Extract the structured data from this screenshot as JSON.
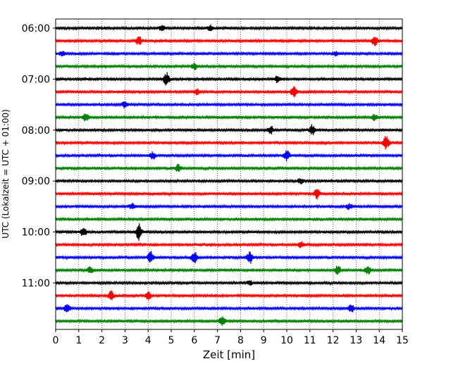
{
  "chart_data": {
    "type": "line",
    "title": "",
    "xlabel": "Zeit  [min]",
    "ylabel": "UTC (Lokalzeit = UTC + 01:00)",
    "xlim": [
      0,
      15
    ],
    "x_ticks": [
      "0",
      "1",
      "2",
      "3",
      "4",
      "5",
      "6",
      "7",
      "8",
      "9",
      "10",
      "11",
      "12",
      "13",
      "14",
      "15"
    ],
    "y_ticks": [
      "06:00",
      "07:00",
      "08:00",
      "09:00",
      "10:00",
      "11:00"
    ],
    "row_interval_minutes": 15,
    "grid": "vertical dotted",
    "series": [
      {
        "start": "06:00",
        "color": "#000000"
      },
      {
        "start": "06:15",
        "color": "#ff0000"
      },
      {
        "start": "06:30",
        "color": "#0000ff"
      },
      {
        "start": "06:45",
        "color": "#008000"
      },
      {
        "start": "07:00",
        "color": "#000000"
      },
      {
        "start": "07:15",
        "color": "#ff0000"
      },
      {
        "start": "07:30",
        "color": "#0000ff"
      },
      {
        "start": "07:45",
        "color": "#008000"
      },
      {
        "start": "08:00",
        "color": "#000000"
      },
      {
        "start": "08:15",
        "color": "#ff0000"
      },
      {
        "start": "08:30",
        "color": "#0000ff"
      },
      {
        "start": "08:45",
        "color": "#008000"
      },
      {
        "start": "09:00",
        "color": "#000000"
      },
      {
        "start": "09:15",
        "color": "#ff0000"
      },
      {
        "start": "09:30",
        "color": "#0000ff"
      },
      {
        "start": "09:45",
        "color": "#008000"
      },
      {
        "start": "10:00",
        "color": "#000000"
      },
      {
        "start": "10:15",
        "color": "#ff0000"
      },
      {
        "start": "10:30",
        "color": "#0000ff"
      },
      {
        "start": "10:45",
        "color": "#008000"
      },
      {
        "start": "11:00",
        "color": "#000000"
      },
      {
        "start": "11:15",
        "color": "#ff0000"
      },
      {
        "start": "11:30",
        "color": "#0000ff"
      },
      {
        "start": "11:45",
        "color": "#008000"
      }
    ],
    "events": [
      {
        "row": "06:00",
        "x": 4.6,
        "amp": 0.5
      },
      {
        "row": "06:00",
        "x": 6.7,
        "amp": 0.5
      },
      {
        "row": "06:15",
        "x": 3.6,
        "amp": 0.9
      },
      {
        "row": "06:15",
        "x": 13.8,
        "amp": 1.0
      },
      {
        "row": "06:30",
        "x": 0.3,
        "amp": 0.6
      },
      {
        "row": "06:30",
        "x": 12.1,
        "amp": 0.4
      },
      {
        "row": "06:45",
        "x": 6.0,
        "amp": 0.6
      },
      {
        "row": "07:00",
        "x": 4.8,
        "amp": 1.4
      },
      {
        "row": "07:00",
        "x": 9.6,
        "amp": 0.7
      },
      {
        "row": "07:15",
        "x": 6.1,
        "amp": 0.5
      },
      {
        "row": "07:15",
        "x": 10.3,
        "amp": 1.1
      },
      {
        "row": "07:30",
        "x": 3.0,
        "amp": 0.7
      },
      {
        "row": "07:45",
        "x": 1.3,
        "amp": 0.8
      },
      {
        "row": "07:45",
        "x": 13.8,
        "amp": 0.6
      },
      {
        "row": "08:00",
        "x": 9.3,
        "amp": 0.8
      },
      {
        "row": "08:00",
        "x": 11.1,
        "amp": 1.0
      },
      {
        "row": "08:15",
        "x": 14.3,
        "amp": 1.3
      },
      {
        "row": "08:30",
        "x": 4.2,
        "amp": 0.7
      },
      {
        "row": "08:30",
        "x": 10.0,
        "amp": 1.0
      },
      {
        "row": "08:45",
        "x": 5.3,
        "amp": 0.7
      },
      {
        "row": "09:00",
        "x": 10.6,
        "amp": 0.5
      },
      {
        "row": "09:15",
        "x": 11.3,
        "amp": 1.0
      },
      {
        "row": "09:30",
        "x": 3.3,
        "amp": 0.6
      },
      {
        "row": "09:30",
        "x": 12.7,
        "amp": 0.6
      },
      {
        "row": "10:00",
        "x": 1.2,
        "amp": 0.9
      },
      {
        "row": "10:00",
        "x": 3.6,
        "amp": 1.6
      },
      {
        "row": "10:15",
        "x": 10.6,
        "amp": 0.6
      },
      {
        "row": "10:30",
        "x": 4.1,
        "amp": 1.2
      },
      {
        "row": "10:30",
        "x": 6.0,
        "amp": 1.2
      },
      {
        "row": "10:30",
        "x": 8.4,
        "amp": 1.2
      },
      {
        "row": "10:45",
        "x": 1.5,
        "amp": 0.7
      },
      {
        "row": "10:45",
        "x": 12.2,
        "amp": 0.9
      },
      {
        "row": "10:45",
        "x": 13.5,
        "amp": 0.8
      },
      {
        "row": "11:00",
        "x": 8.4,
        "amp": 0.4
      },
      {
        "row": "11:15",
        "x": 2.4,
        "amp": 0.9
      },
      {
        "row": "11:15",
        "x": 4.0,
        "amp": 0.8
      },
      {
        "row": "11:30",
        "x": 0.5,
        "amp": 0.9
      },
      {
        "row": "11:30",
        "x": 12.8,
        "amp": 0.8
      },
      {
        "row": "11:45",
        "x": 7.2,
        "amp": 0.9
      }
    ]
  }
}
